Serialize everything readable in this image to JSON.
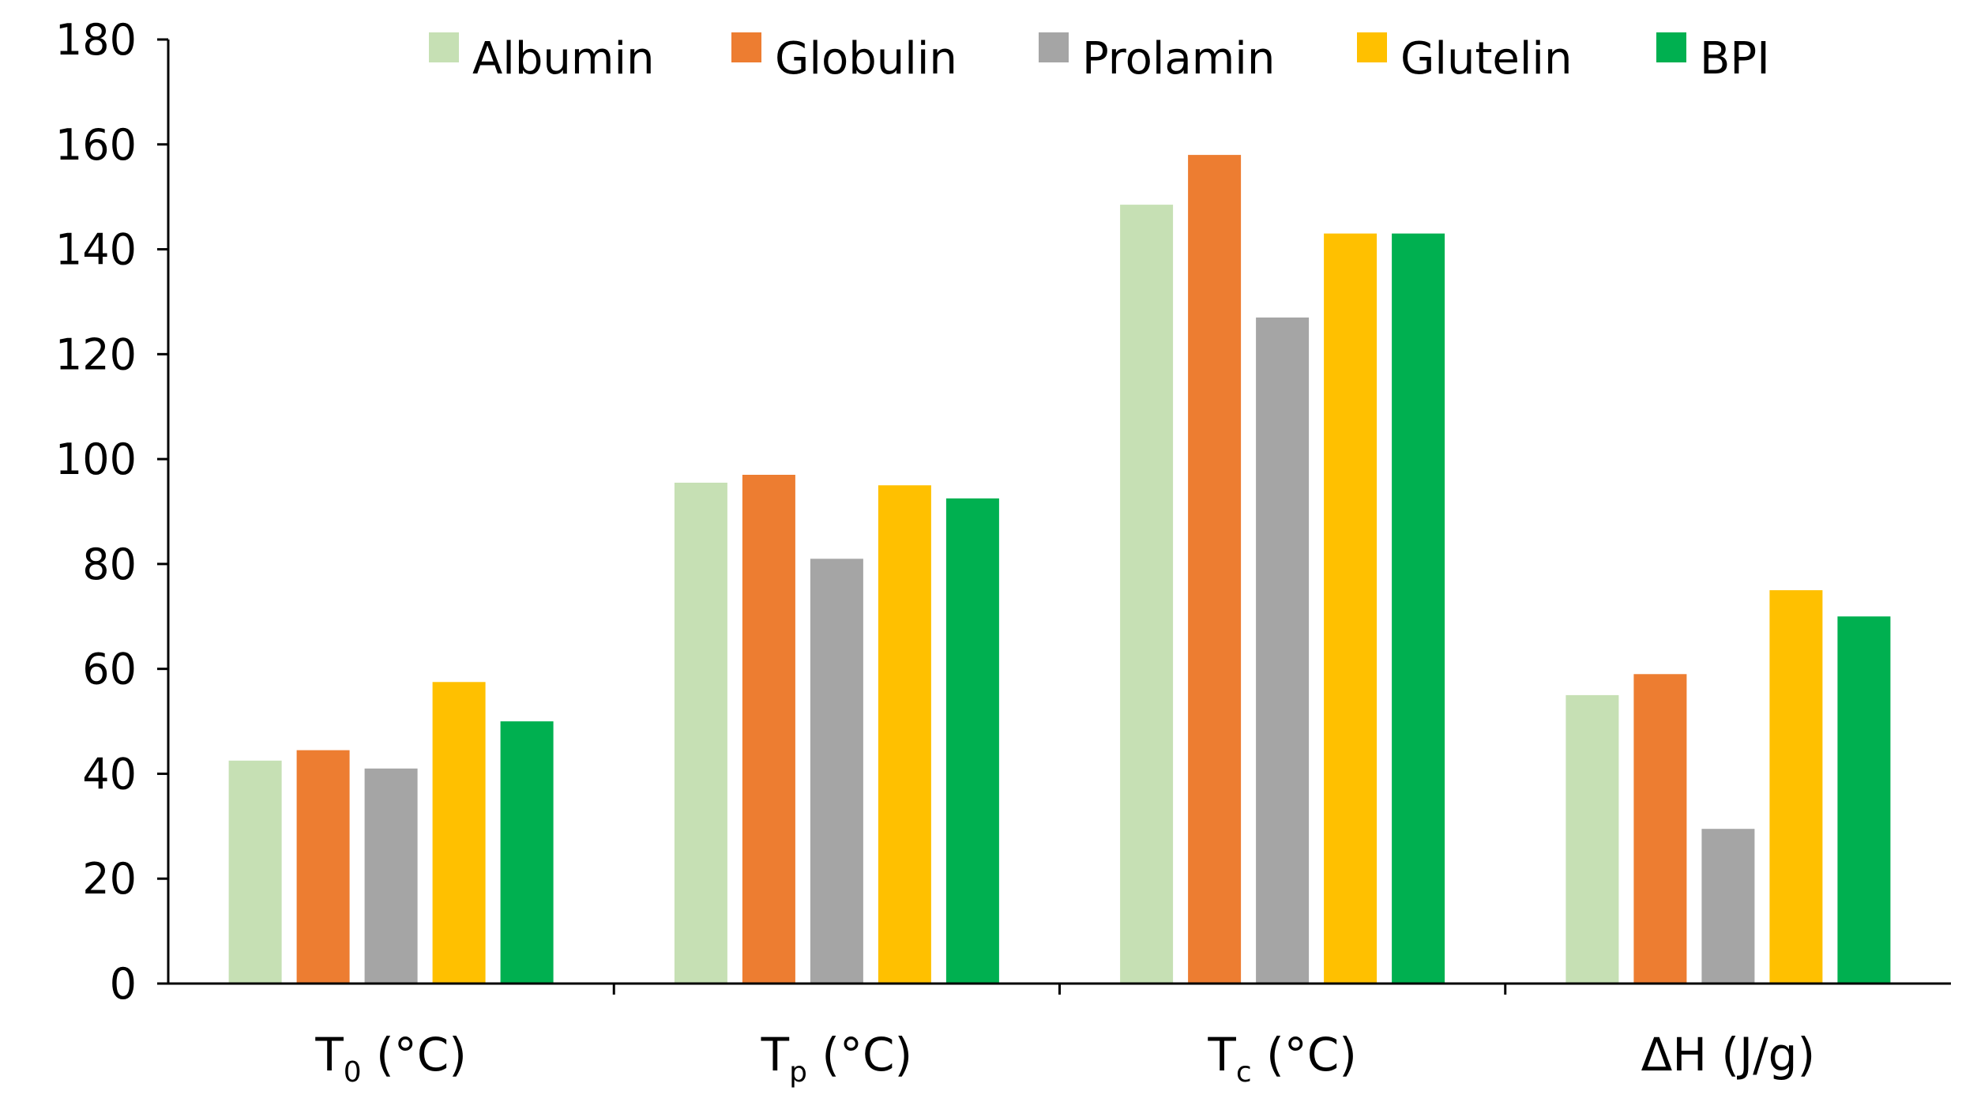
{
  "chart_data": {
    "type": "bar",
    "title": "",
    "xlabel": "",
    "ylabel": "",
    "ylim": [
      0,
      180
    ],
    "yticks": [
      0,
      20,
      40,
      60,
      80,
      100,
      120,
      140,
      160,
      180
    ],
    "grid": false,
    "legend_position": "top",
    "categories": [
      {
        "main": "T",
        "sub": "0",
        "rest": " (°C)"
      },
      {
        "main": "T",
        "sub": "p",
        "rest": " (°C)"
      },
      {
        "main": "T",
        "sub": "c",
        "rest": " (°C)"
      },
      {
        "main": "ΔH (J/g)",
        "sub": "",
        "rest": ""
      }
    ],
    "series": [
      {
        "name": "Albumin",
        "color": "#c6e0b4",
        "values": [
          42.5,
          95.5,
          148.5,
          55
        ]
      },
      {
        "name": "Globulin",
        "color": "#ed7d31",
        "values": [
          44.5,
          97,
          158,
          59
        ]
      },
      {
        "name": "Prolamin",
        "color": "#a5a5a5",
        "values": [
          41,
          81,
          127,
          29.5
        ]
      },
      {
        "name": "Glutelin",
        "color": "#ffc000",
        "values": [
          57.5,
          95,
          143,
          75
        ]
      },
      {
        "name": "BPI",
        "color": "#00b050",
        "values": [
          50,
          92.5,
          143,
          70
        ]
      }
    ]
  }
}
